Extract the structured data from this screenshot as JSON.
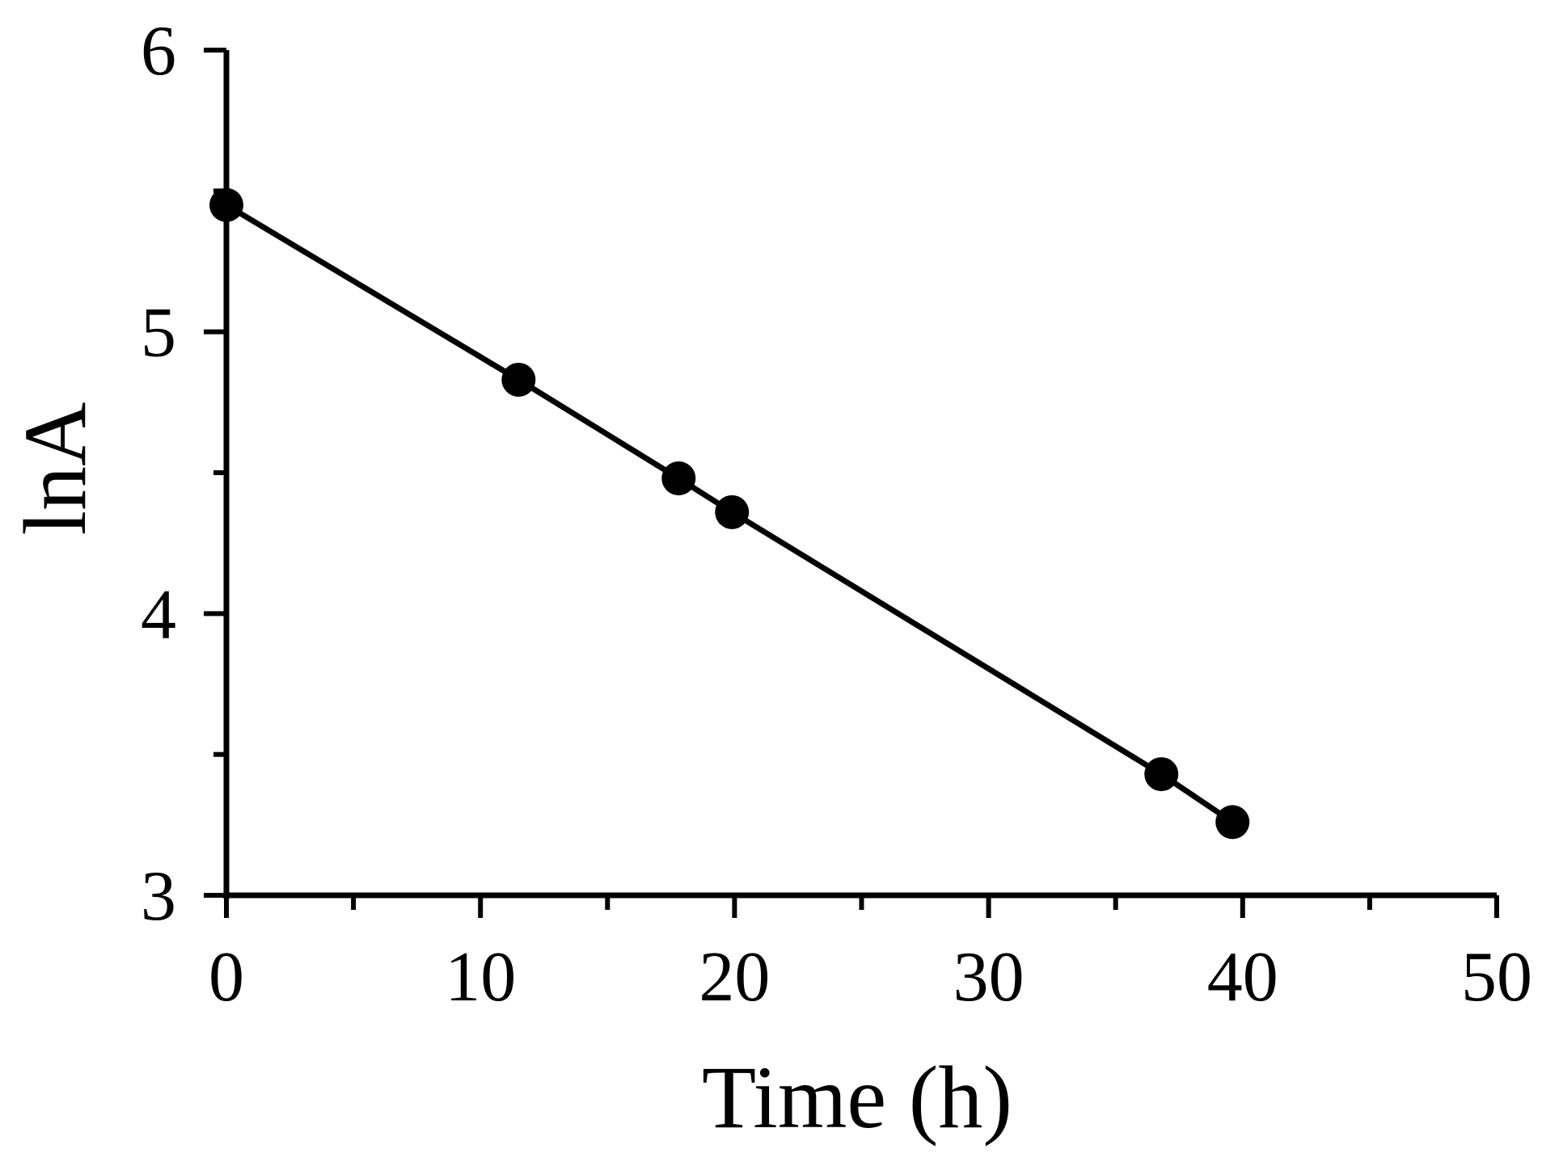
{
  "chart_data": {
    "type": "line",
    "title": "",
    "xlabel": "Time (h)",
    "ylabel": "lnA",
    "xlim": [
      0,
      50
    ],
    "ylim": [
      3,
      6
    ],
    "x_ticks": [
      0,
      10,
      20,
      30,
      40,
      50
    ],
    "x_tick_labels": [
      "0",
      "10",
      "20",
      "30",
      "40",
      "50"
    ],
    "x_minor_ticks": [
      5,
      15,
      25,
      35,
      45
    ],
    "y_ticks": [
      3,
      4,
      5,
      6
    ],
    "y_tick_labels": [
      "3",
      "4",
      "5",
      "6"
    ],
    "y_minor_ticks": [
      3.5,
      4.5,
      5.5
    ],
    "grid": false,
    "legend": "none",
    "series": [
      {
        "marker": "filled-circle",
        "line": "solid",
        "color": "#000000",
        "x": [
          0,
          11.5,
          17.8,
          19.9,
          36.8,
          39.6
        ],
        "y": [
          5.45,
          4.83,
          4.48,
          4.36,
          3.43,
          3.26
        ]
      }
    ]
  }
}
